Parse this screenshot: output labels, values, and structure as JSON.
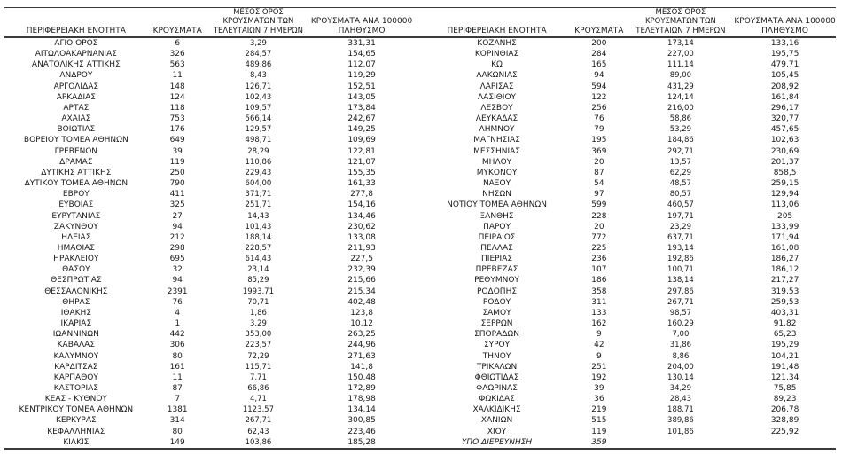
{
  "page": {
    "background": "#ffffff",
    "text_color": "#1a1a1a",
    "rule_color": "#3a3a3a"
  },
  "headers": {
    "region": "ΠΕΡΙΦΕΡΕΙΑΚΗ ΕΝΟΤΗΤΑ",
    "cases": "ΚΡΟΥΣΜΑΤΑ",
    "avg7_lines": [
      "ΜΕΣΟΣ ΟΡΟΣ",
      "ΚΡΟΥΣΜΑΤΩΝ ΤΩΝ",
      "ΤΕΛΕΥΤΑΙΩΝ 7 ΗΜΕΡΩΝ"
    ],
    "per100k_lines": [
      "ΚΡΟΥΣΜΑΤΑ ΑΝΑ 100000",
      "ΠΛΗΘΥΣΜΟ"
    ]
  },
  "left_rows": [
    [
      "ΑΓΙΟ ΟΡΟΣ",
      "6",
      "3,29",
      "331,31"
    ],
    [
      "ΑΙΤΩΛΟΑΚΑΡΝΑΝΙΑΣ",
      "326",
      "284,57",
      "154,65"
    ],
    [
      "ΑΝΑΤΟΛΙΚΗΣ ΑΤΤΙΚΗΣ",
      "563",
      "489,86",
      "112,07"
    ],
    [
      "ΑΝΔΡΟΥ",
      "11",
      "8,43",
      "119,29"
    ],
    [
      "ΑΡΓΟΛΙΔΑΣ",
      "148",
      "126,71",
      "152,51"
    ],
    [
      "ΑΡΚΑΔΙΑΣ",
      "124",
      "102,43",
      "143,05"
    ],
    [
      "ΑΡΤΑΣ",
      "118",
      "109,57",
      "173,84"
    ],
    [
      "ΑΧΑΪΑΣ",
      "753",
      "566,14",
      "242,67"
    ],
    [
      "ΒΟΙΩΤΙΑΣ",
      "176",
      "129,57",
      "149,25"
    ],
    [
      "ΒΟΡΕΙΟΥ ΤΟΜΕΑ ΑΘΗΝΩΝ",
      "649",
      "498,71",
      "109,69"
    ],
    [
      "ΓΡΕΒΕΝΩΝ",
      "39",
      "28,29",
      "122,81"
    ],
    [
      "ΔΡΑΜΑΣ",
      "119",
      "110,86",
      "121,07"
    ],
    [
      "ΔΥΤΙΚΗΣ ΑΤΤΙΚΗΣ",
      "250",
      "229,43",
      "155,35"
    ],
    [
      "ΔΥΤΙΚΟΥ ΤΟΜΕΑ ΑΘΗΝΩΝ",
      "790",
      "604,00",
      "161,33"
    ],
    [
      "ΕΒΡΟΥ",
      "411",
      "371,71",
      "277,8"
    ],
    [
      "ΕΥΒΟΙΑΣ",
      "325",
      "251,71",
      "154,16"
    ],
    [
      "ΕΥΡΥΤΑΝΙΑΣ",
      "27",
      "14,43",
      "134,46"
    ],
    [
      "ΖΑΚΥΝΘΟΥ",
      "94",
      "101,43",
      "230,62"
    ],
    [
      "ΗΛΕΙΑΣ",
      "212",
      "188,14",
      "133,08"
    ],
    [
      "ΗΜΑΘΙΑΣ",
      "298",
      "228,57",
      "211,93"
    ],
    [
      "ΗΡΑΚΛΕΙΟΥ",
      "695",
      "614,43",
      "227,5"
    ],
    [
      "ΘΑΣΟΥ",
      "32",
      "23,14",
      "232,39"
    ],
    [
      "ΘΕΣΠΡΩΤΙΑΣ",
      "94",
      "85,29",
      "215,66"
    ],
    [
      "ΘΕΣΣΑΛΟΝΙΚΗΣ",
      "2391",
      "1993,71",
      "215,34"
    ],
    [
      "ΘΗΡΑΣ",
      "76",
      "70,71",
      "402,48"
    ],
    [
      "ΙΘΑΚΗΣ",
      "4",
      "1,86",
      "123,8"
    ],
    [
      "ΙΚΑΡΙΑΣ",
      "1",
      "3,29",
      "10,12"
    ],
    [
      "ΙΩΑΝΝΙΝΩΝ",
      "442",
      "353,00",
      "263,25"
    ],
    [
      "ΚΑΒΑΛΑΣ",
      "306",
      "223,57",
      "244,96"
    ],
    [
      "ΚΑΛΥΜΝΟΥ",
      "80",
      "72,29",
      "271,63"
    ],
    [
      "ΚΑΡΔΙΤΣΑΣ",
      "161",
      "115,71",
      "141,8"
    ],
    [
      "ΚΑΡΠΑΘΟΥ",
      "11",
      "7,71",
      "150,48"
    ],
    [
      "ΚΑΣΤΟΡΙΑΣ",
      "87",
      "66,86",
      "172,89"
    ],
    [
      "ΚΕΑΣ - ΚΥΘΝΟΥ",
      "7",
      "4,71",
      "178,98"
    ],
    [
      "ΚΕΝΤΡΙΚΟΥ ΤΟΜΕΑ ΑΘΗΝΩΝ",
      "1381",
      "1123,57",
      "134,14"
    ],
    [
      "ΚΕΡΚΥΡΑΣ",
      "314",
      "267,71",
      "300,85"
    ],
    [
      "ΚΕΦΑΛΛΗΝΙΑΣ",
      "80",
      "62,43",
      "223,46"
    ],
    [
      "ΚΙΛΚΙΣ",
      "149",
      "103,86",
      "185,28"
    ]
  ],
  "right_rows": [
    [
      "ΚΟΖΑΝΗΣ",
      "200",
      "173,14",
      "133,16"
    ],
    [
      "ΚΟΡΙΝΘΙΑΣ",
      "284",
      "227,00",
      "195,75"
    ],
    [
      "ΚΩ",
      "165",
      "111,14",
      "479,71"
    ],
    [
      "ΛΑΚΩΝΙΑΣ",
      "94",
      "89,00",
      "105,45"
    ],
    [
      "ΛΑΡΙΣΑΣ",
      "594",
      "431,29",
      "208,92"
    ],
    [
      "ΛΑΣΙΘΙΟΥ",
      "122",
      "124,14",
      "161,84"
    ],
    [
      "ΛΕΣΒΟΥ",
      "256",
      "216,00",
      "296,17"
    ],
    [
      "ΛΕΥΚΑΔΑΣ",
      "76",
      "58,86",
      "320,77"
    ],
    [
      "ΛΗΜΝΟΥ",
      "79",
      "53,29",
      "457,65"
    ],
    [
      "ΜΑΓΝΗΣΙΑΣ",
      "195",
      "184,86",
      "102,63"
    ],
    [
      "ΜΕΣΣΗΝΙΑΣ",
      "369",
      "292,71",
      "230,69"
    ],
    [
      "ΜΗΛΟΥ",
      "20",
      "13,57",
      "201,37"
    ],
    [
      "ΜΥΚΟΝΟΥ",
      "87",
      "62,29",
      "858,5"
    ],
    [
      "ΝΑΞΟΥ",
      "54",
      "48,57",
      "259,15"
    ],
    [
      "ΝΗΣΩΝ",
      "97",
      "80,57",
      "129,94"
    ],
    [
      "ΝΟΤΙΟΥ ΤΟΜΕΑ ΑΘΗΝΩΝ",
      "599",
      "460,57",
      "113,06"
    ],
    [
      "ΞΑΝΘΗΣ",
      "228",
      "197,71",
      "205"
    ],
    [
      "ΠΑΡΟΥ",
      "20",
      "23,29",
      "133,99"
    ],
    [
      "ΠΕΙΡΑΙΩΣ",
      "772",
      "637,71",
      "171,94"
    ],
    [
      "ΠΕΛΛΑΣ",
      "225",
      "193,14",
      "161,08"
    ],
    [
      "ΠΙΕΡΙΑΣ",
      "236",
      "192,86",
      "186,27"
    ],
    [
      "ΠΡΕΒΕΖΑΣ",
      "107",
      "100,71",
      "186,12"
    ],
    [
      "ΡΕΘΥΜΝΟΥ",
      "186",
      "138,14",
      "217,27"
    ],
    [
      "ΡΟΔΟΠΗΣ",
      "358",
      "297,86",
      "319,53"
    ],
    [
      "ΡΟΔΟΥ",
      "311",
      "267,71",
      "259,53"
    ],
    [
      "ΣΑΜΟΥ",
      "133",
      "98,57",
      "403,31"
    ],
    [
      "ΣΕΡΡΩΝ",
      "162",
      "160,29",
      "91,82"
    ],
    [
      "ΣΠΟΡΑΔΩΝ",
      "9",
      "7,00",
      "65,23"
    ],
    [
      "ΣΥΡΟΥ",
      "42",
      "31,86",
      "195,29"
    ],
    [
      "ΤΗΝΟΥ",
      "9",
      "8,86",
      "104,21"
    ],
    [
      "ΤΡΙΚΑΛΩΝ",
      "251",
      "204,00",
      "191,48"
    ],
    [
      "ΦΘΙΩΤΙΔΑΣ",
      "192",
      "130,14",
      "121,34"
    ],
    [
      "ΦΛΩΡΙΝΑΣ",
      "39",
      "34,29",
      "75,85"
    ],
    [
      "ΦΩΚΙΔΑΣ",
      "36",
      "28,43",
      "89,23"
    ],
    [
      "ΧΑΛΚΙΔΙΚΗΣ",
      "219",
      "188,71",
      "206,78"
    ],
    [
      "ΧΑΝΙΩΝ",
      "515",
      "389,86",
      "328,89"
    ],
    [
      "ΧΙΟΥ",
      "119",
      "101,86",
      "225,92"
    ],
    [
      "ΥΠΟ ΔΙΕΡΕΥΝΗΣΗ",
      "359",
      "",
      "",
      "italic"
    ]
  ]
}
